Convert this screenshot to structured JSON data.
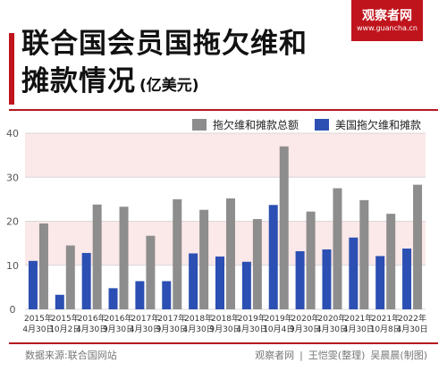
{
  "title": "联合国会员国拖欠维和摊款情况",
  "unit": "(亿美元)",
  "brand": {
    "name": "观察者网",
    "site": "www.guancha.cn"
  },
  "source": "数据来源:联合国网站",
  "credits": {
    "publisher": "观察者网",
    "editor": "王恺雯(整理)",
    "designer": "吴晨晨(制图)"
  },
  "colors": {
    "total": "#8d8d8d",
    "us": "#2b4fb3",
    "accent": "#c0141c",
    "band": "#fbe8e8"
  },
  "chart_data": {
    "type": "bar",
    "title": "联合国会员国拖欠维和摊款情况",
    "ylabel": "(亿美元)",
    "ylim": [
      0,
      40
    ],
    "yticks": [
      0,
      10,
      20,
      30,
      40
    ],
    "grid": true,
    "legend_position": "top-right",
    "categories": [
      {
        "year": "2015年",
        "date": "4月30日"
      },
      {
        "year": "2015年",
        "date": "10月2日"
      },
      {
        "year": "2016年",
        "date": "4月30日"
      },
      {
        "year": "2016年",
        "date": "9月30日"
      },
      {
        "year": "2017年",
        "date": "4月30日"
      },
      {
        "year": "2017年",
        "date": "9月30日"
      },
      {
        "year": "2018年",
        "date": "4月30日"
      },
      {
        "year": "2018年",
        "date": "9月30日"
      },
      {
        "year": "2019年",
        "date": "4月30日"
      },
      {
        "year": "2019年",
        "date": "10月4日"
      },
      {
        "year": "2020年",
        "date": "9月30日"
      },
      {
        "year": "2020年",
        "date": "4月30日"
      },
      {
        "year": "2021年",
        "date": "4月30日"
      },
      {
        "year": "2021年",
        "date": "10月8日"
      },
      {
        "year": "2022年",
        "date": "4月30日"
      }
    ],
    "series": [
      {
        "name": "拖欠维和摊款总额",
        "color": "#8d8d8d",
        "values": [
          19.5,
          14.5,
          23.8,
          23.3,
          16.7,
          25.0,
          22.6,
          25.2,
          20.5,
          37.0,
          22.2,
          27.5,
          24.8,
          21.7,
          28.3
        ]
      },
      {
        "name": "美国拖欠维和摊款",
        "color": "#2b4fb3",
        "values": [
          11.0,
          3.3,
          12.8,
          4.8,
          6.4,
          6.4,
          12.7,
          12.0,
          10.8,
          23.7,
          13.2,
          13.6,
          16.3,
          12.1,
          13.8
        ]
      }
    ]
  }
}
